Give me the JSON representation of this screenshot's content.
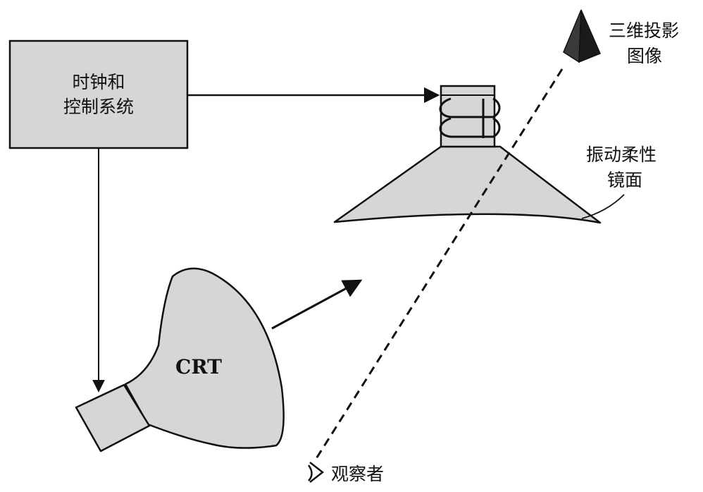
{
  "labels": {
    "clock_control_line1": "时钟和",
    "clock_control_line2": "控制系统",
    "crt": "CRT",
    "projection_line1": "三维投影",
    "projection_line2": "图像",
    "mirror_line1": "振动柔性",
    "mirror_line2": "镜面",
    "observer": "观察者"
  },
  "colors": {
    "fill": "#d6d6d6",
    "stroke": "#111111",
    "pyramid": "#2b2b2b"
  }
}
